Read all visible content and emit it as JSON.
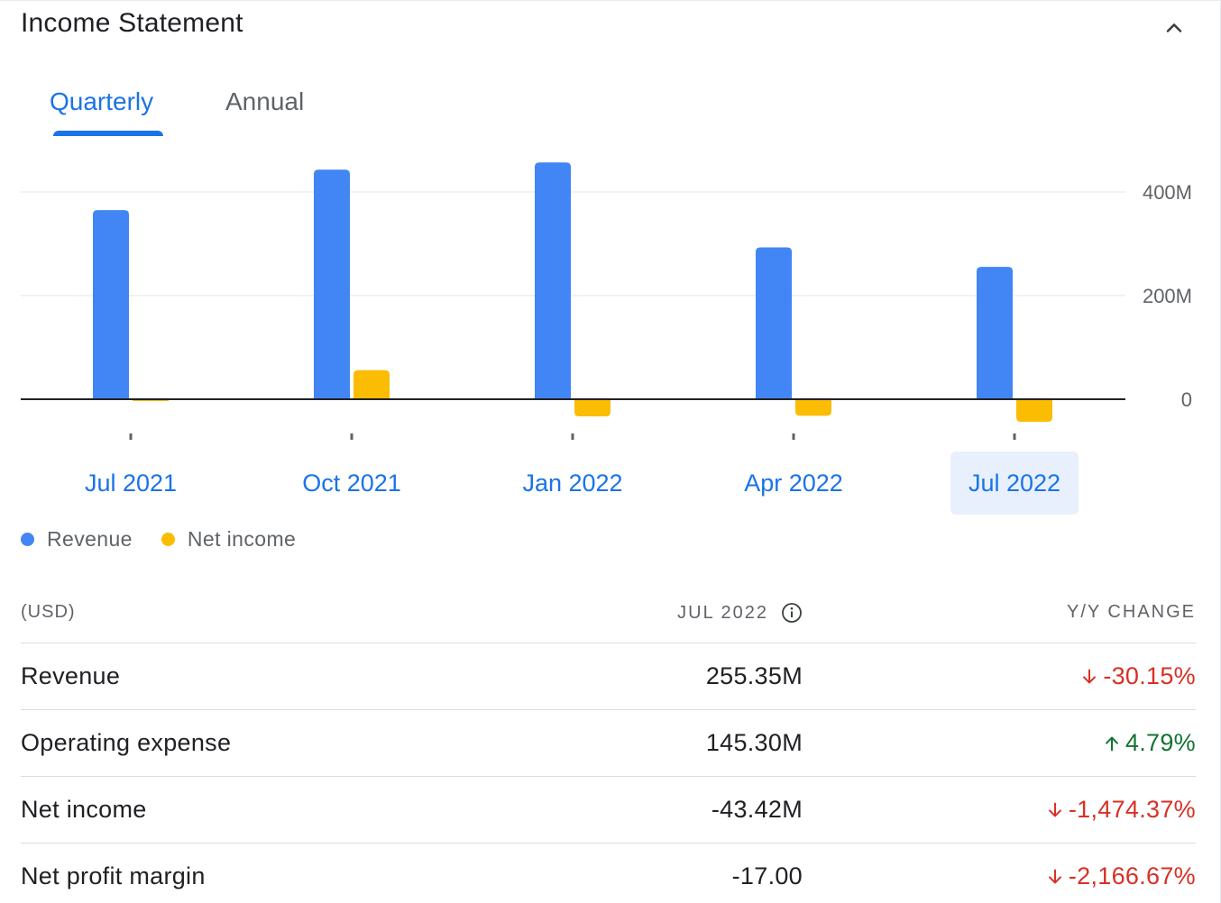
{
  "header": {
    "title": "Income Statement"
  },
  "tabs": [
    {
      "label": "Quarterly",
      "selected": true
    },
    {
      "label": "Annual",
      "selected": false
    }
  ],
  "colors": {
    "revenue": "#4285f4",
    "net_income": "#fbbc04",
    "accent": "#1a73e8",
    "negative": "#d93025",
    "positive": "#137333"
  },
  "chart_data": {
    "type": "bar",
    "categories": [
      "Jul 2021",
      "Oct 2021",
      "Jan 2022",
      "Apr 2022",
      "Jul 2022"
    ],
    "selected_category": "Jul 2022",
    "series": [
      {
        "name": "Revenue",
        "values": [
          365,
          443,
          457,
          293,
          255.35
        ]
      },
      {
        "name": "Net income",
        "values": [
          -3,
          56,
          -33,
          -32,
          -43.42
        ]
      }
    ],
    "y_ticks": [
      {
        "value": 0,
        "label": "0"
      },
      {
        "value": 200,
        "label": "200M"
      },
      {
        "value": 400,
        "label": "400M"
      }
    ],
    "ylim": [
      -50,
      500
    ],
    "grid": true,
    "legend": "bottom-left"
  },
  "legend": [
    {
      "label": "Revenue",
      "color": "#4285f4"
    },
    {
      "label": "Net income",
      "color": "#fbbc04"
    }
  ],
  "table": {
    "unit_label": "(USD)",
    "period_label": "JUL 2022",
    "change_label": "Y/Y CHANGE",
    "rows": [
      {
        "label": "Revenue",
        "value": "255.35M",
        "change": "-30.15%",
        "direction": "down"
      },
      {
        "label": "Operating expense",
        "value": "145.30M",
        "change": "4.79%",
        "direction": "up"
      },
      {
        "label": "Net income",
        "value": "-43.42M",
        "change": "-1,474.37%",
        "direction": "down"
      },
      {
        "label": "Net profit margin",
        "value": "-17.00",
        "change": "-2,166.67%",
        "direction": "down"
      }
    ]
  }
}
